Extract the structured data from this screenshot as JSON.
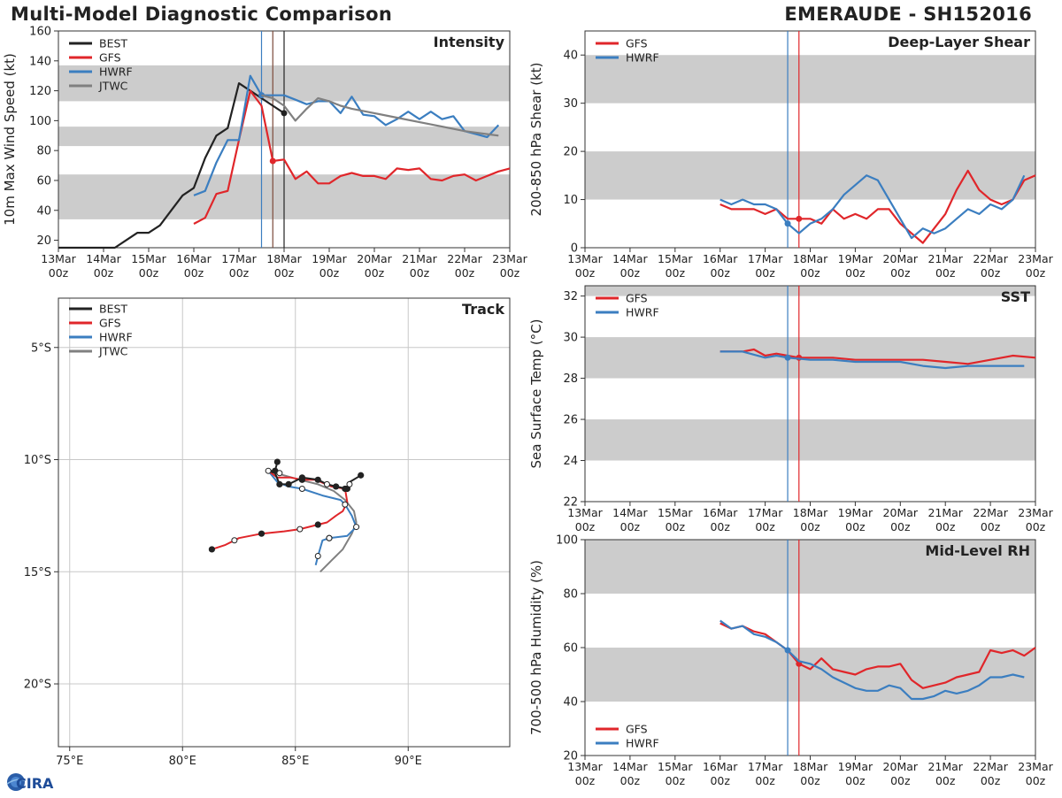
{
  "header": {
    "title": "Multi-Model Diagnostic Comparison",
    "storm": "EMERAUDE - SH152016"
  },
  "logo_text": "CIRA",
  "colors": {
    "BEST": "#222222",
    "GFS": "#e0262a",
    "HWRF": "#3b7ec0",
    "JTWC": "#808080",
    "band": "#cccccc",
    "grid": "#c8c8c8"
  },
  "time_ticks": [
    "13Mar\n00z",
    "14Mar\n00z",
    "15Mar\n00z",
    "16Mar\n00z",
    "17Mar\n00z",
    "18Mar\n00z",
    "19Mar\n00z",
    "20Mar\n00z",
    "21Mar\n00z",
    "22Mar\n00z",
    "23Mar\n00z"
  ],
  "chart_data": [
    {
      "id": "intensity",
      "type": "line",
      "title": "Intensity",
      "ylabel": "10m Max Wind Speed (kt)",
      "ylim": [
        15,
        160
      ],
      "yticks": [
        20,
        40,
        60,
        80,
        100,
        120,
        140,
        160
      ],
      "bands": [
        [
          34,
          64
        ],
        [
          83,
          96
        ],
        [
          113,
          137
        ]
      ],
      "vlines": [
        {
          "x": 4.5,
          "color": "HWRF"
        },
        {
          "x": 4.75,
          "color": "brown"
        },
        {
          "x": 5.0,
          "color": "BEST"
        }
      ],
      "legend": [
        "BEST",
        "GFS",
        "HWRF",
        "JTWC"
      ],
      "series": [
        {
          "name": "BEST",
          "x": [
            0.0,
            0.5,
            1.0,
            1.25,
            1.5,
            1.75,
            2.0,
            2.25,
            2.5,
            2.75,
            3.0,
            3.25,
            3.5,
            3.75,
            4.0,
            4.25,
            4.5,
            4.75,
            5.0
          ],
          "values": [
            15,
            15,
            15,
            15,
            20,
            25,
            25,
            30,
            40,
            50,
            55,
            75,
            90,
            95,
            125,
            120,
            115,
            110,
            105
          ],
          "markers": [
            5.0
          ]
        },
        {
          "name": "GFS",
          "x": [
            3.0,
            3.25,
            3.5,
            3.75,
            4.0,
            4.25,
            4.5,
            4.75,
            5.0,
            5.25,
            5.5,
            5.75,
            6.0,
            6.25,
            6.5,
            6.75,
            7.0,
            7.25,
            7.5,
            7.75,
            8.0,
            8.25,
            8.5,
            8.75,
            9.0,
            9.25,
            9.5,
            9.75,
            10.0
          ],
          "values": [
            31,
            35,
            51,
            53,
            87,
            120,
            110,
            73,
            74,
            61,
            66,
            58,
            58,
            63,
            65,
            63,
            63,
            61,
            68,
            67,
            68,
            61,
            60,
            63,
            64,
            60,
            63,
            66,
            68
          ],
          "markers": [
            4.75
          ]
        },
        {
          "name": "HWRF",
          "x": [
            3.0,
            3.25,
            3.5,
            3.75,
            4.0,
            4.25,
            4.5,
            4.75,
            5.0,
            5.25,
            5.5,
            5.75,
            6.0,
            6.25,
            6.5,
            6.75,
            7.0,
            7.25,
            7.5,
            7.75,
            8.0,
            8.25,
            8.5,
            8.75,
            9.0,
            9.25,
            9.5,
            9.75
          ],
          "values": [
            50,
            53,
            72,
            87,
            87,
            130,
            117,
            117,
            117,
            114,
            111,
            113,
            113,
            105,
            116,
            104,
            103,
            97,
            101,
            106,
            101,
            106,
            101,
            103,
            93,
            91,
            89,
            97
          ],
          "markers": [
            4.5
          ]
        },
        {
          "name": "JTWC",
          "x": [
            4.5,
            4.75,
            5.0,
            5.25,
            5.5,
            5.75,
            6.0,
            6.25,
            6.5,
            7.0,
            7.5,
            8.0,
            8.5,
            9.0,
            9.5,
            9.75
          ],
          "values": [
            117,
            115,
            110,
            100,
            108,
            115,
            113,
            110,
            108,
            105,
            102,
            99,
            96,
            93,
            91,
            90
          ],
          "markers": []
        }
      ]
    },
    {
      "id": "shear",
      "type": "line",
      "title": "Deep-Layer Shear",
      "ylabel": "200-850 hPa Shear (kt)",
      "ylim": [
        0,
        45
      ],
      "yticks": [
        0,
        10,
        20,
        30,
        40
      ],
      "bands": [
        [
          10,
          20
        ],
        [
          30,
          40
        ]
      ],
      "vlines": [
        {
          "x": 4.5,
          "color": "HWRF"
        },
        {
          "x": 4.75,
          "color": "GFS"
        }
      ],
      "legend": [
        "GFS",
        "HWRF"
      ],
      "series": [
        {
          "name": "GFS",
          "x": [
            3.0,
            3.25,
            3.5,
            3.75,
            4.0,
            4.25,
            4.5,
            4.75,
            5.0,
            5.25,
            5.5,
            5.75,
            6.0,
            6.25,
            6.5,
            6.75,
            7.0,
            7.25,
            7.5,
            7.75,
            8.0,
            8.25,
            8.5,
            8.75,
            9.0,
            9.25,
            9.5,
            9.75,
            10.0
          ],
          "values": [
            9,
            8,
            8,
            8,
            7,
            8,
            6,
            6,
            6,
            5,
            8,
            6,
            7,
            6,
            8,
            8,
            5,
            3,
            1,
            4,
            7,
            12,
            16,
            12,
            10,
            9,
            10,
            14,
            15
          ],
          "markers": [
            4.75
          ]
        },
        {
          "name": "HWRF",
          "x": [
            3.0,
            3.25,
            3.5,
            3.75,
            4.0,
            4.25,
            4.5,
            4.75,
            5.0,
            5.25,
            5.5,
            5.75,
            6.0,
            6.25,
            6.5,
            6.75,
            7.0,
            7.25,
            7.5,
            7.75,
            8.0,
            8.25,
            8.5,
            8.75,
            9.0,
            9.25,
            9.5,
            9.75
          ],
          "values": [
            10,
            9,
            10,
            9,
            9,
            8,
            5,
            3,
            5,
            6,
            8,
            11,
            13,
            15,
            14,
            10,
            6,
            2,
            4,
            3,
            4,
            6,
            8,
            7,
            9,
            8,
            10,
            15
          ],
          "markers": [
            4.5
          ]
        }
      ]
    },
    {
      "id": "sst",
      "type": "line",
      "title": "SST",
      "ylabel": "Sea Surface Temp (°C)",
      "ylim": [
        22,
        32.5
      ],
      "yticks": [
        22,
        24,
        26,
        28,
        30,
        32
      ],
      "bands": [
        [
          24,
          26
        ],
        [
          28,
          30
        ],
        [
          32,
          32.5
        ]
      ],
      "vlines": [
        {
          "x": 4.5,
          "color": "HWRF"
        },
        {
          "x": 4.75,
          "color": "GFS"
        }
      ],
      "legend": [
        "GFS",
        "HWRF"
      ],
      "series": [
        {
          "name": "GFS",
          "x": [
            3.0,
            3.25,
            3.5,
            3.75,
            4.0,
            4.25,
            4.5,
            4.75,
            5.0,
            5.5,
            6.0,
            6.5,
            7.0,
            7.5,
            8.0,
            8.5,
            9.0,
            9.5,
            10.0
          ],
          "values": [
            29.3,
            29.3,
            29.3,
            29.4,
            29.1,
            29.2,
            29.1,
            29.0,
            29.0,
            29.0,
            28.9,
            28.9,
            28.9,
            28.9,
            28.8,
            28.7,
            28.9,
            29.1,
            29.0
          ],
          "markers": [
            4.75
          ]
        },
        {
          "name": "HWRF",
          "x": [
            3.0,
            3.5,
            4.0,
            4.25,
            4.5,
            5.0,
            5.5,
            6.0,
            6.5,
            7.0,
            7.5,
            8.0,
            8.5,
            9.0,
            9.5,
            9.75
          ],
          "values": [
            29.3,
            29.3,
            29.0,
            29.1,
            29.0,
            28.9,
            28.9,
            28.8,
            28.8,
            28.8,
            28.6,
            28.5,
            28.6,
            28.6,
            28.6,
            28.6
          ],
          "markers": [
            4.5
          ]
        }
      ]
    },
    {
      "id": "rh",
      "type": "line",
      "title": "Mid-Level RH",
      "ylabel": "700-500 hPa Humidity (%)",
      "ylim": [
        20,
        100
      ],
      "yticks": [
        20,
        40,
        60,
        80,
        100
      ],
      "bands": [
        [
          40,
          60
        ],
        [
          80,
          100
        ]
      ],
      "vlines": [
        {
          "x": 4.5,
          "color": "HWRF"
        },
        {
          "x": 4.75,
          "color": "GFS"
        }
      ],
      "legend": [
        "GFS",
        "HWRF"
      ],
      "legend_pos": "bottom-left",
      "series": [
        {
          "name": "GFS",
          "x": [
            3.0,
            3.25,
            3.5,
            3.75,
            4.0,
            4.25,
            4.5,
            4.75,
            5.0,
            5.25,
            5.5,
            5.75,
            6.0,
            6.25,
            6.5,
            6.75,
            7.0,
            7.25,
            7.5,
            7.75,
            8.0,
            8.25,
            8.5,
            8.75,
            9.0,
            9.25,
            9.5,
            9.75,
            10.0
          ],
          "values": [
            69,
            67,
            68,
            66,
            65,
            62,
            59,
            54,
            52,
            56,
            52,
            51,
            50,
            52,
            53,
            53,
            54,
            48,
            45,
            46,
            47,
            49,
            50,
            51,
            59,
            58,
            59,
            57,
            60
          ],
          "markers": [
            4.75
          ]
        },
        {
          "name": "HWRF",
          "x": [
            3.0,
            3.25,
            3.5,
            3.75,
            4.0,
            4.25,
            4.5,
            4.75,
            5.0,
            5.25,
            5.5,
            5.75,
            6.0,
            6.25,
            6.5,
            6.75,
            7.0,
            7.25,
            7.5,
            7.75,
            8.0,
            8.25,
            8.5,
            8.75,
            9.0,
            9.25,
            9.5,
            9.75
          ],
          "values": [
            70,
            67,
            68,
            65,
            64,
            62,
            59,
            55,
            54,
            52,
            49,
            47,
            45,
            44,
            44,
            46,
            45,
            41,
            41,
            42,
            44,
            43,
            44,
            46,
            49,
            49,
            50,
            49
          ],
          "markers": [
            4.5
          ]
        }
      ]
    },
    {
      "id": "track",
      "type": "line",
      "title": "Track",
      "xlim": [
        74.5,
        94.5
      ],
      "ylim": [
        -22.8,
        -2.8
      ],
      "xticks": [
        75,
        80,
        85,
        90
      ],
      "xticklabels": [
        "75°E",
        "80°E",
        "85°E",
        "90°E"
      ],
      "yticks": [
        -5,
        -10,
        -15,
        -20
      ],
      "yticklabels": [
        "5°S",
        "10°S",
        "15°S",
        "20°S"
      ],
      "legend": [
        "BEST",
        "GFS",
        "HWRF",
        "JTWC"
      ],
      "series": [
        {
          "name": "BEST",
          "lon": [
            87.9,
            87.4,
            87.3,
            86.8,
            86.4,
            86.0,
            85.3,
            84.7,
            84.3,
            84.1,
            83.8,
            84.1,
            84.2
          ],
          "lat": [
            -10.7,
            -11.0,
            -11.3,
            -11.2,
            -11.1,
            -10.9,
            -10.8,
            -11.1,
            -11.1,
            -10.6,
            -10.5,
            -10.5,
            -10.1
          ],
          "filled": [
            0,
            2,
            3,
            5,
            6,
            7,
            8,
            11,
            12
          ],
          "open": []
        },
        {
          "name": "GFS",
          "lon": [
            83.8,
            84.2,
            84.8,
            85.3,
            85.9,
            86.6,
            87.2,
            87.3,
            87.1,
            86.8,
            86.4,
            86.0,
            85.2,
            84.5,
            83.5,
            82.5,
            82.3,
            81.9,
            81.3
          ],
          "lat": [
            -10.5,
            -10.8,
            -10.8,
            -10.9,
            -10.9,
            -11.2,
            -11.3,
            -11.9,
            -12.3,
            -12.5,
            -12.8,
            -12.9,
            -13.1,
            -13.2,
            -13.3,
            -13.5,
            -13.6,
            -13.8,
            -14.0
          ],
          "filled": [
            3,
            6,
            11,
            14,
            18
          ],
          "open": [
            12,
            16
          ]
        },
        {
          "name": "HWRF",
          "lon": [
            83.8,
            84.2,
            84.7,
            85.3,
            86.2,
            87.0,
            87.2,
            87.5,
            87.7,
            87.3,
            86.5,
            86.2,
            86.0,
            85.9
          ],
          "lat": [
            -10.5,
            -11.0,
            -11.2,
            -11.3,
            -11.6,
            -11.8,
            -12.0,
            -12.5,
            -13.0,
            -13.4,
            -13.5,
            -13.6,
            -14.3,
            -14.7
          ],
          "filled": [
            10
          ],
          "open": [
            0,
            3,
            6,
            8,
            10,
            12
          ]
        },
        {
          "name": "JTWC",
          "lon": [
            83.8,
            84.5,
            85.2,
            86.0,
            86.7,
            87.2,
            87.6,
            87.7,
            87.5,
            87.1,
            86.6,
            86.1
          ],
          "lat": [
            -10.5,
            -10.7,
            -10.9,
            -11.1,
            -11.4,
            -11.8,
            -12.3,
            -12.8,
            -13.3,
            -14.0,
            -14.5,
            -15.0
          ],
          "filled": [],
          "open": []
        }
      ],
      "extra_open_points": [
        {
          "lon": 87.4,
          "lat": -11.1
        },
        {
          "lon": 86.4,
          "lat": -11.1
        },
        {
          "lon": 84.3,
          "lat": -10.6
        }
      ]
    }
  ]
}
